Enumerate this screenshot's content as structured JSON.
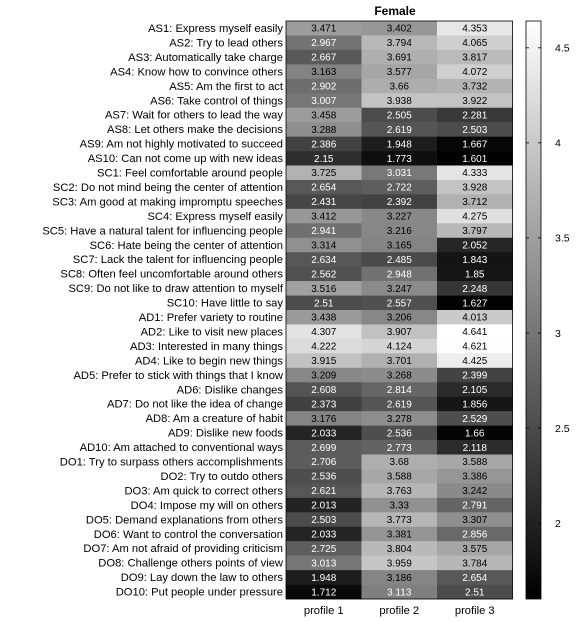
{
  "chart_data": {
    "type": "heatmap",
    "title": "Female",
    "columns": [
      "profile 1",
      "profile 2",
      "profile 3"
    ],
    "rows": [
      {
        "label": "AS1: Express myself easily",
        "values": [
          3.471,
          3.402,
          4.353
        ]
      },
      {
        "label": "AS2: Try to lead others",
        "values": [
          2.967,
          3.794,
          4.065
        ]
      },
      {
        "label": "AS3: Automatically take charge",
        "values": [
          2.667,
          3.691,
          3.817
        ]
      },
      {
        "label": "AS4: Know how to convince others",
        "values": [
          3.163,
          3.577,
          4.072
        ]
      },
      {
        "label": "AS5: Am the first to act",
        "values": [
          2.902,
          3.66,
          3.732
        ]
      },
      {
        "label": "AS6: Take control of things",
        "values": [
          3.007,
          3.938,
          3.922
        ]
      },
      {
        "label": "AS7: Wait for others to lead the way",
        "values": [
          3.458,
          2.505,
          2.281
        ]
      },
      {
        "label": "AS8: Let others make the decisions",
        "values": [
          3.288,
          2.619,
          2.503
        ]
      },
      {
        "label": "AS9: Am not highly motivated to succeed",
        "values": [
          2.386,
          1.948,
          1.667
        ]
      },
      {
        "label": "AS10: Can not come up with new ideas",
        "values": [
          2.15,
          1.773,
          1.601
        ]
      },
      {
        "label": "SC1: Feel comfortable around people",
        "values": [
          3.725,
          3.031,
          4.333
        ]
      },
      {
        "label": "SC2: Do not mind being the center of attention",
        "values": [
          2.654,
          2.722,
          3.928
        ]
      },
      {
        "label": "SC3: Am good at making impromptu speeches",
        "values": [
          2.431,
          2.392,
          3.712
        ]
      },
      {
        "label": "SC4: Express myself easily",
        "values": [
          3.412,
          3.227,
          4.275
        ]
      },
      {
        "label": "SC5: Have a natural talent for influencing people",
        "values": [
          2.941,
          3.216,
          3.797
        ]
      },
      {
        "label": "SC6: Hate being the center of attention",
        "values": [
          3.314,
          3.165,
          2.052
        ]
      },
      {
        "label": "SC7: Lack the talent for influencing people",
        "values": [
          2.634,
          2.485,
          1.843
        ]
      },
      {
        "label": "SC8: Often feel uncomfortable around others",
        "values": [
          2.562,
          2.948,
          1.85
        ]
      },
      {
        "label": "SC9: Do not like to draw attention to myself",
        "values": [
          3.516,
          3.247,
          2.248
        ]
      },
      {
        "label": "SC10: Have little to say",
        "values": [
          2.51,
          2.557,
          1.627
        ]
      },
      {
        "label": "AD1: Prefer variety to routine",
        "values": [
          3.438,
          3.206,
          4.013
        ]
      },
      {
        "label": "AD2: Like to visit new places",
        "values": [
          4.307,
          3.907,
          4.641
        ]
      },
      {
        "label": "AD3: Interested in many things",
        "values": [
          4.222,
          4.124,
          4.621
        ]
      },
      {
        "label": "AD4: Like to begin new things",
        "values": [
          3.915,
          3.701,
          4.425
        ]
      },
      {
        "label": "AD5: Prefer to stick with things that I know",
        "values": [
          3.209,
          3.268,
          2.399
        ]
      },
      {
        "label": "AD6: Dislike changes",
        "values": [
          2.608,
          2.814,
          2.105
        ]
      },
      {
        "label": "AD7: Do not like the idea of change",
        "values": [
          2.373,
          2.619,
          1.856
        ]
      },
      {
        "label": "AD8: Am a creature of habit",
        "values": [
          3.176,
          3.278,
          2.529
        ]
      },
      {
        "label": "AD9: Dislike new foods",
        "values": [
          2.033,
          2.536,
          1.66
        ]
      },
      {
        "label": "AD10: Am attached to conventional ways",
        "values": [
          2.699,
          2.773,
          2.118
        ]
      },
      {
        "label": "DO1: Try to surpass others accomplishments",
        "values": [
          2.706,
          3.68,
          3.588
        ]
      },
      {
        "label": "DO2: Try to outdo others",
        "values": [
          2.536,
          3.588,
          3.386
        ]
      },
      {
        "label": "DO3: Am quick to correct others",
        "values": [
          2.621,
          3.763,
          3.242
        ]
      },
      {
        "label": "DO4: Impose my will on others",
        "values": [
          2.013,
          3.33,
          2.791
        ]
      },
      {
        "label": "DO5: Demand explanations from others",
        "values": [
          2.503,
          3.773,
          3.307
        ]
      },
      {
        "label": "DO6: Want to control the conversation",
        "values": [
          2.033,
          3.381,
          2.856
        ]
      },
      {
        "label": "DO7: Am not afraid of providing criticism",
        "values": [
          2.725,
          3.804,
          3.575
        ]
      },
      {
        "label": "DO8: Challenge others points of view",
        "values": [
          3.013,
          3.959,
          3.784
        ]
      },
      {
        "label": "DO9: Lay down the law to others",
        "values": [
          1.948,
          3.186,
          2.654
        ]
      },
      {
        "label": "DO10: Put people under pressure",
        "values": [
          1.712,
          3.113,
          2.51
        ]
      }
    ],
    "colorscale": "gray",
    "clim": [
      1.601,
      4.641
    ],
    "colorbar_ticks": [
      2,
      2.5,
      3,
      3.5,
      4,
      4.5
    ],
    "colorbar_tick_labels": [
      "2",
      "2.5",
      "3",
      "3.5",
      "4",
      "4.5"
    ]
  }
}
